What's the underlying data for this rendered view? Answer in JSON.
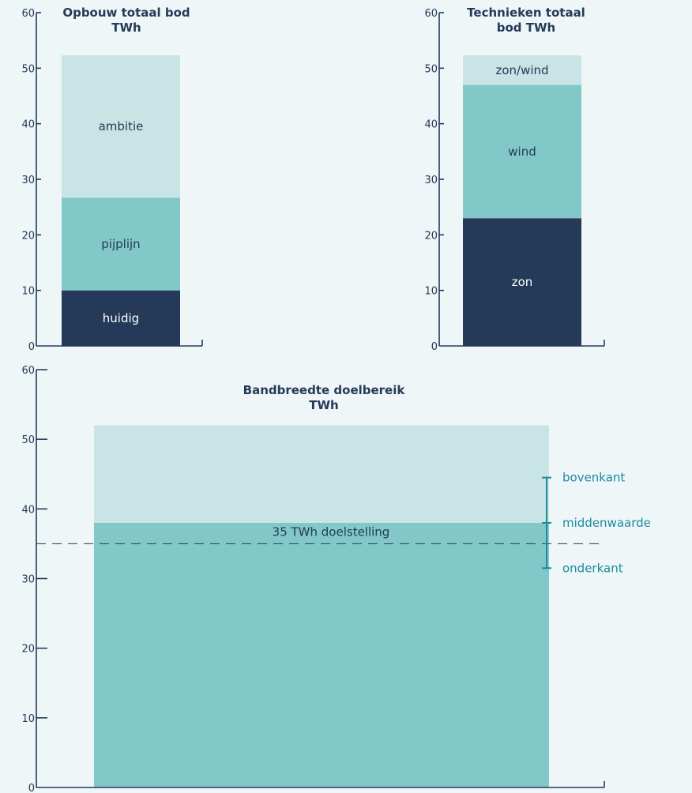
{
  "colors": {
    "background": "#eef6f7",
    "axis": "#243a58",
    "dark": "#243a58",
    "mid": "#82c8c8",
    "light": "#c8e4e4",
    "annotation": "#1d8aa0"
  },
  "chart_data": [
    {
      "id": "chart1",
      "type": "bar",
      "stacked": true,
      "title": "Opbouw totaal bod\nTWh",
      "ylim": [
        0,
        60
      ],
      "yticks": [
        0,
        10,
        20,
        30,
        40,
        50,
        60
      ],
      "segments": [
        {
          "label": "huidig",
          "value": 10,
          "color": "#243a58",
          "text_color": "#ffffff"
        },
        {
          "label": "pijplijn",
          "value": 16.7,
          "color": "#82c8c8",
          "text_color": "#243a58"
        },
        {
          "label": "ambitie",
          "value": 25.6,
          "color": "#c8e4e4",
          "text_color": "#243a58"
        }
      ]
    },
    {
      "id": "chart2",
      "type": "bar",
      "stacked": true,
      "title": "Technieken totaal\nbod TWh",
      "ylim": [
        0,
        60
      ],
      "yticks": [
        0,
        10,
        20,
        30,
        40,
        50,
        60
      ],
      "segments": [
        {
          "label": "zon",
          "value": 23,
          "color": "#243a58",
          "text_color": "#ffffff"
        },
        {
          "label": "wind",
          "value": 24,
          "color": "#82c8c8",
          "text_color": "#243a58"
        },
        {
          "label": "zon/wind",
          "value": 5.3,
          "color": "#c8e4e4",
          "text_color": "#243a58"
        }
      ]
    },
    {
      "id": "chart3",
      "type": "bar",
      "stacked": true,
      "title": "Bandbreedte doelbereik\nTWh",
      "ylim": [
        0,
        60
      ],
      "yticks": [
        0,
        10,
        20,
        30,
        40,
        50,
        60
      ],
      "segments": [
        {
          "label": "",
          "value": 38,
          "color": "#82c8c8",
          "text_color": "#243a58"
        },
        {
          "label": "",
          "value": 14,
          "color": "#c8e4e4",
          "text_color": "#243a58"
        }
      ],
      "target": {
        "value": 35,
        "label": "35 TWh doelstelling"
      },
      "range": {
        "upper": {
          "value": 44.5,
          "label": "bovenkant"
        },
        "middle": {
          "value": 38,
          "label": "middenwaarde"
        },
        "lower": {
          "value": 31.5,
          "label": "onderkant"
        }
      }
    }
  ]
}
